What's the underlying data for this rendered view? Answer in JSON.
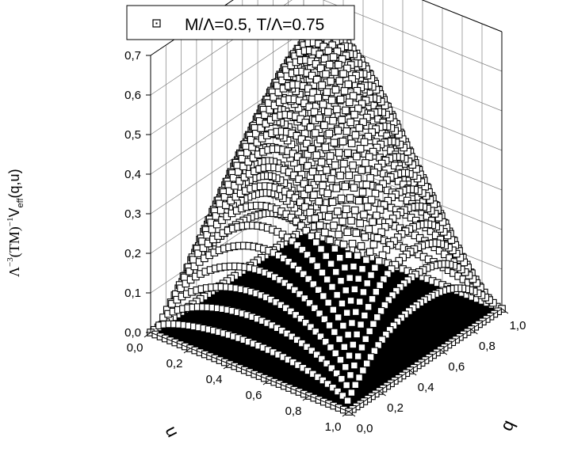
{
  "chart_data": {
    "type": "surface3d",
    "legend": "M/Λ=0.5, T/Λ=0.75",
    "legend_position": "top",
    "grid": true,
    "ylabel": {
      "prefix": "Λ",
      "sup1": "−3",
      "middle": "(TM)",
      "sup2": "−1",
      "v": "V",
      "sub": "eff",
      "suffix": "(q,u)"
    },
    "u_axis": {
      "label": "u",
      "range": [
        0,
        1
      ],
      "ticks": [
        "0,0",
        "0,2",
        "0,4",
        "0,6",
        "0,8",
        "1,0"
      ]
    },
    "q_axis": {
      "label": "q",
      "range": [
        0,
        1
      ],
      "ticks": [
        "0,0",
        "0,2",
        "0,4",
        "0,6",
        "0,8",
        "1,0"
      ]
    },
    "z_axis": {
      "range": [
        0,
        0.7
      ],
      "ticks": [
        "0,0",
        "0,1",
        "0,2",
        "0,3",
        "0,4",
        "0,5",
        "0,6",
        "0,7"
      ]
    },
    "colors": {
      "marker_edge": "#000000",
      "marker_fill": "#ffffff",
      "floor": "#000000",
      "grid": "#808080"
    },
    "grid_resolution": 40,
    "peak_value": 0.68
  }
}
